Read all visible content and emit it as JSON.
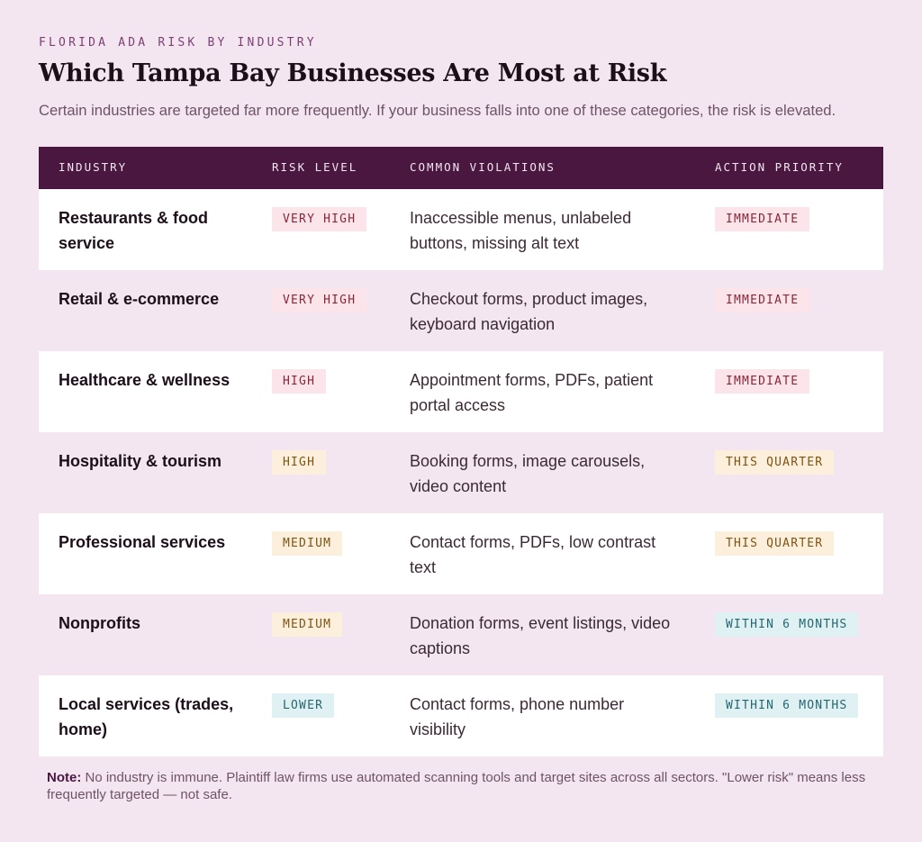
{
  "eyebrow": "FLORIDA ADA RISK BY INDUSTRY",
  "title": "Which Tampa Bay Businesses Are Most at Risk",
  "subtitle": "Certain industries are targeted far more frequently. If your business falls into one of these categories, the risk is elevated.",
  "table": {
    "headers": {
      "industry": "INDUSTRY",
      "risk": "RISK LEVEL",
      "violations": "COMMON VIOLATIONS",
      "priority": "ACTION PRIORITY"
    },
    "rows": [
      {
        "industry": "Restaurants & food service",
        "risk": "VERY HIGH",
        "violations": "Inaccessible menus, unlabeled buttons, missing alt text",
        "priority": "IMMEDIATE"
      },
      {
        "industry": "Retail & e-commerce",
        "risk": "VERY HIGH",
        "violations": "Checkout forms, product images, keyboard navigation",
        "priority": "IMMEDIATE"
      },
      {
        "industry": "Healthcare & wellness",
        "risk": "HIGH",
        "violations": "Appointment forms, PDFs, patient portal access",
        "priority": "IMMEDIATE"
      },
      {
        "industry": "Hospitality & tourism",
        "risk": "HIGH",
        "violations": "Booking forms, image carousels, video content",
        "priority": "THIS QUARTER"
      },
      {
        "industry": "Professional services",
        "risk": "MEDIUM",
        "violations": "Contact forms, PDFs, low contrast text",
        "priority": "THIS QUARTER"
      },
      {
        "industry": "Nonprofits",
        "risk": "MEDIUM",
        "violations": "Donation forms, event listings, video captions",
        "priority": "WITHIN 6 MONTHS"
      },
      {
        "industry": "Local services (trades, home)",
        "risk": "LOWER",
        "violations": "Contact forms, phone number visibility",
        "priority": "WITHIN 6 MONTHS"
      }
    ]
  },
  "note": {
    "label": "Note:",
    "text": "No industry is immune. Plaintiff law firms use automated scanning tools and target sites across all sectors. \"Lower risk\" means less frequently targeted — not safe."
  },
  "colors": {
    "header_bg": "#4a1740",
    "page_bg": "#f4e6f1",
    "badge_red_bg": "#fbe4ea",
    "badge_amber_bg": "#fcefdc",
    "badge_blue_bg": "#dff1f3"
  }
}
